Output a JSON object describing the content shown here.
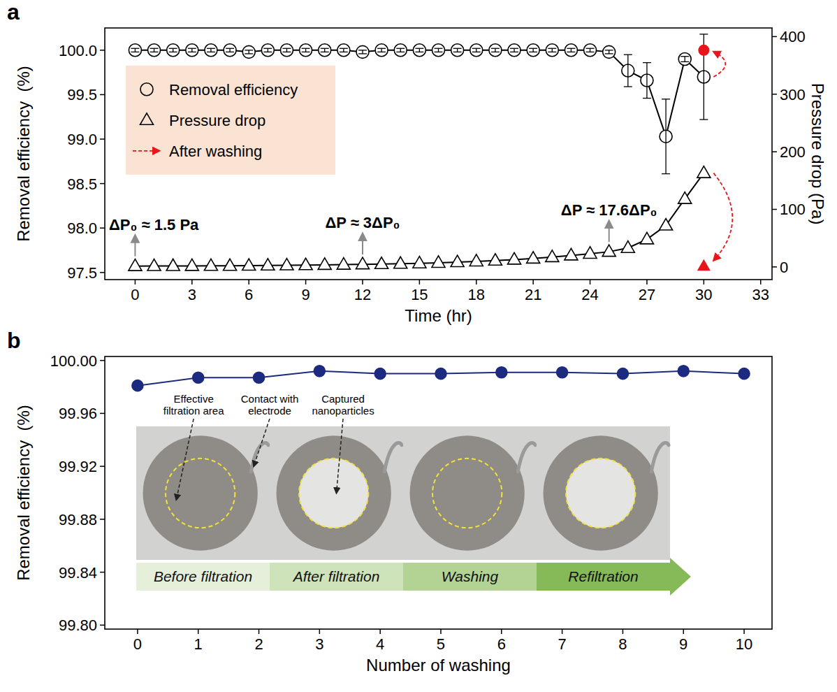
{
  "chart_data": [
    {
      "panel": "a",
      "type": "line",
      "x_label": "Time (hr)",
      "y_label": "Removal efficiency  (%)",
      "y2_label": "Pressure drop (Pa)",
      "x": [
        0,
        1,
        2,
        3,
        4,
        5,
        6,
        7,
        8,
        9,
        10,
        11,
        12,
        13,
        14,
        15,
        16,
        17,
        18,
        19,
        20,
        21,
        22,
        23,
        24,
        25,
        26,
        27,
        28,
        29,
        30
      ],
      "xlim": [
        -1.6,
        33.6
      ],
      "xticks": [
        0,
        3,
        6,
        9,
        12,
        15,
        18,
        21,
        24,
        27,
        30,
        33
      ],
      "ylim": [
        97.42,
        100.25
      ],
      "yticks": [
        97.5,
        {
          "value": 98,
          "label": "98.0"
        },
        98.5,
        {
          "value": 99,
          "label": "99.0"
        },
        99.5,
        {
          "value": 100,
          "label": "100.0"
        }
      ],
      "y2lim": [
        -22,
        415
      ],
      "y2ticks": [
        0,
        100,
        200,
        300,
        400
      ],
      "legend": "top-left",
      "series": [
        {
          "name": "Removal efficiency",
          "color": "#000000",
          "marker": "circle",
          "values": [
            100,
            100,
            100,
            100,
            100,
            100,
            99.98,
            100,
            100,
            100,
            100,
            100,
            99.98,
            100,
            100,
            100,
            100,
            100,
            100,
            100,
            100,
            100,
            100,
            100,
            100,
            99.98,
            99.77,
            99.66,
            99.03,
            99.9,
            99.7
          ],
          "error": [
            0.02,
            0.02,
            0.02,
            0.02,
            0.02,
            0.02,
            0.02,
            0.02,
            0.02,
            0.02,
            0.02,
            0.02,
            0.02,
            0.02,
            0.02,
            0.02,
            0.02,
            0.02,
            0.02,
            0.02,
            0.02,
            0.02,
            0.02,
            0.02,
            0.02,
            0.02,
            0.18,
            0.2,
            0.42,
            0.03,
            0.48
          ]
        },
        {
          "name": "Pressure drop",
          "color": "#000000",
          "marker": "triangle",
          "axis": "y2",
          "values": [
            1.5,
            1.6,
            1.7,
            1.8,
            1.9,
            2,
            2.2,
            2.5,
            2.8,
            3.2,
            3.6,
            4,
            4.5,
            5,
            5.6,
            6.3,
            7.2,
            8.3,
            9.6,
            11,
            12.7,
            14.6,
            17,
            20,
            23,
            26.4,
            33,
            48,
            72,
            118,
            163
          ]
        }
      ],
      "after_washing": {
        "name": "After washing",
        "color": "#e8151b",
        "x": 30,
        "efficiency": 100,
        "pressure": 1.5
      },
      "annotations": [
        {
          "text": "ΔP₀ ≈ 1.5 Pa",
          "x": 0
        },
        {
          "text": "ΔP ≈ 3ΔP₀",
          "x": 12
        },
        {
          "text": "ΔP ≈ 17.6ΔP₀",
          "x": 25
        }
      ]
    },
    {
      "panel": "b",
      "type": "line",
      "x_label": "Number of washing",
      "y_label": "Removal efficiency  (%)",
      "x": [
        0,
        1,
        2,
        3,
        4,
        5,
        6,
        7,
        8,
        9,
        10
      ],
      "xlim": [
        -0.54,
        10.46
      ],
      "xticks": [
        0,
        1,
        2,
        3,
        4,
        5,
        6,
        7,
        8,
        9,
        10
      ],
      "ylim": [
        99.797,
        100.003
      ],
      "yticks": [
        {
          "value": 99.8,
          "label": "99.80"
        },
        99.84,
        99.88,
        99.92,
        99.96,
        {
          "value": 100,
          "label": "100.00"
        }
      ],
      "series": [
        {
          "color": "#1c2a80",
          "marker": "circle",
          "values": [
            99.981,
            99.987,
            99.987,
            99.992,
            99.99,
            99.99,
            99.991,
            99.991,
            99.99,
            99.992,
            99.99
          ]
        }
      ],
      "annotations": [
        {
          "text": "Effective filtration area"
        },
        {
          "text": "Contact with electrode"
        },
        {
          "text": "Captured nanoparticles"
        }
      ],
      "stages": [
        "Before filtration",
        "After filtration",
        "Washing",
        "Refiltration"
      ]
    }
  ]
}
